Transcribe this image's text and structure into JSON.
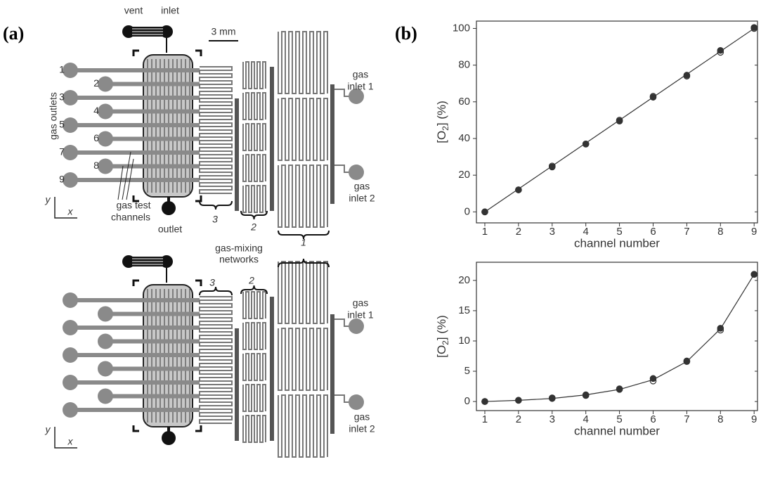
{
  "panel_labels": [
    "(a)",
    "(b)"
  ],
  "diagram": {
    "top": {
      "vent": "vent",
      "inlet": "inlet",
      "scale_bar": "3 mm",
      "outlets_label": "gas outlets",
      "channel_numbers": [
        "1",
        "2",
        "3",
        "4",
        "5",
        "6",
        "7",
        "8",
        "9"
      ],
      "test_channels_label": [
        "gas test",
        "channels"
      ],
      "outlet": "outlet",
      "network_labels": [
        "3",
        "2",
        "1"
      ],
      "mixing_label": [
        "gas-mixing",
        "networks"
      ],
      "gas_inlet_1": [
        "gas",
        "inlet 1"
      ],
      "gas_inlet_2": [
        "gas",
        "inlet 2"
      ],
      "axis_y": "y",
      "axis_x": "x"
    },
    "bottom": {
      "network_labels": [
        "3",
        "2"
      ],
      "gas_inlet_1": [
        "gas",
        "inlet 1"
      ],
      "gas_inlet_2": [
        "gas",
        "inlet 2"
      ],
      "axis_y": "y",
      "axis_x": "x"
    }
  },
  "chart_data": [
    {
      "type": "line",
      "x": [
        1,
        2,
        3,
        4,
        5,
        6,
        7,
        8,
        9
      ],
      "xlim": [
        0.75,
        9.1
      ],
      "xticks": [
        1,
        2,
        3,
        4,
        5,
        6,
        7,
        8,
        9
      ],
      "ylim": [
        -6,
        104
      ],
      "yticks": [
        0,
        20,
        40,
        60,
        80,
        100
      ],
      "x_label": "channel number",
      "y_label": [
        "[O",
        "2",
        "] (%)"
      ],
      "series": [
        {
          "style": "line",
          "color": "#333333",
          "values": [
            0,
            12.5,
            25,
            37.5,
            50,
            62.5,
            75,
            87.5,
            100
          ]
        },
        {
          "style": "filled",
          "color": "#333333",
          "values": [
            0,
            12,
            24.5,
            37,
            49.5,
            62.5,
            74.5,
            88,
            100.5
          ]
        },
        {
          "style": "open",
          "color": "#333333",
          "values": [
            0,
            12,
            25,
            37,
            50,
            63,
            74,
            87,
            100
          ]
        }
      ]
    },
    {
      "type": "line",
      "x": [
        1,
        2,
        3,
        4,
        5,
        6,
        7,
        8,
        9
      ],
      "xlim": [
        0.75,
        9.1
      ],
      "xticks": [
        1,
        2,
        3,
        4,
        5,
        6,
        7,
        8,
        9
      ],
      "ylim": [
        -1.5,
        23
      ],
      "yticks": [
        0,
        5,
        10,
        15,
        20
      ],
      "x_label": "channel number",
      "y_label": [
        "[O",
        "2",
        "] (%)"
      ],
      "series": [
        {
          "style": "line",
          "color": "#333333",
          "values": [
            0,
            0.2,
            0.5,
            1.1,
            2.0,
            3.6,
            6.6,
            12,
            21
          ]
        },
        {
          "style": "filled",
          "color": "#333333",
          "values": [
            0,
            0.2,
            0.6,
            1.1,
            2.1,
            3.8,
            6.7,
            12.1,
            21.0
          ]
        },
        {
          "style": "open",
          "color": "#333333",
          "values": [
            0,
            0.2,
            0.5,
            1.0,
            2.0,
            3.4,
            6.6,
            11.8,
            21.0
          ]
        }
      ]
    }
  ]
}
